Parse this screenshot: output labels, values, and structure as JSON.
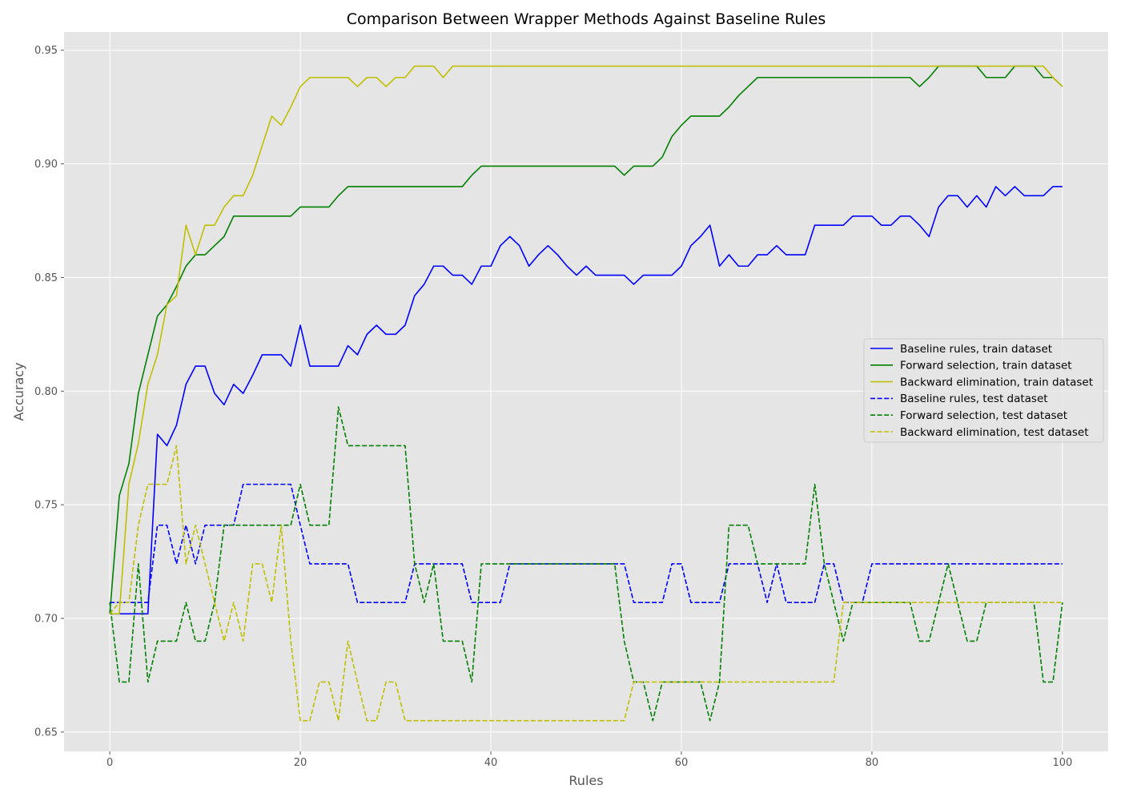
{
  "chart_data": {
    "type": "line",
    "title": "Comparison Between Wrapper Methods Against Baseline Rules",
    "xlabel": "Rules",
    "ylabel": "Accuracy",
    "xlim": [
      -4.8,
      104.8
    ],
    "ylim": [
      0.6415,
      0.958
    ],
    "xticks": [
      0,
      20,
      40,
      60,
      80,
      100
    ],
    "yticks": [
      0.65,
      0.7,
      0.75,
      0.8,
      0.85,
      0.9,
      0.95
    ],
    "grid": true,
    "legend_position": "center-right",
    "x": [
      0,
      1,
      2,
      3,
      4,
      5,
      6,
      7,
      8,
      9,
      10,
      11,
      12,
      13,
      14,
      15,
      16,
      17,
      18,
      19,
      20,
      21,
      22,
      23,
      24,
      25,
      26,
      27,
      28,
      29,
      30,
      31,
      32,
      33,
      34,
      35,
      36,
      37,
      38,
      39,
      40,
      41,
      42,
      43,
      44,
      45,
      46,
      47,
      48,
      49,
      50,
      51,
      52,
      53,
      54,
      55,
      56,
      57,
      58,
      59,
      60,
      61,
      62,
      63,
      64,
      65,
      66,
      67,
      68,
      69,
      70,
      71,
      72,
      73,
      74,
      75,
      76,
      77,
      78,
      79,
      80,
      81,
      82,
      83,
      84,
      85,
      86,
      87,
      88,
      89,
      90,
      91,
      92,
      93,
      94,
      95,
      96,
      97,
      98,
      99,
      100
    ],
    "series": [
      {
        "name": "Baseline rules, train dataset",
        "color": "#0000ff",
        "style": "solid",
        "values": [
          0.702,
          0.702,
          0.702,
          0.702,
          0.702,
          0.781,
          0.776,
          0.785,
          0.803,
          0.811,
          0.811,
          0.799,
          0.794,
          0.803,
          0.799,
          0.807,
          0.816,
          0.816,
          0.816,
          0.811,
          0.829,
          0.811,
          0.811,
          0.811,
          0.811,
          0.82,
          0.816,
          0.825,
          0.829,
          0.825,
          0.825,
          0.829,
          0.842,
          0.847,
          0.855,
          0.855,
          0.851,
          0.851,
          0.847,
          0.855,
          0.855,
          0.864,
          0.868,
          0.864,
          0.855,
          0.86,
          0.864,
          0.86,
          0.855,
          0.851,
          0.855,
          0.851,
          0.851,
          0.851,
          0.851,
          0.847,
          0.851,
          0.851,
          0.851,
          0.851,
          0.855,
          0.864,
          0.868,
          0.873,
          0.855,
          0.86,
          0.855,
          0.855,
          0.86,
          0.86,
          0.864,
          0.86,
          0.86,
          0.86,
          0.873,
          0.873,
          0.873,
          0.873,
          0.877,
          0.877,
          0.877,
          0.873,
          0.873,
          0.877,
          0.877,
          0.873,
          0.868,
          0.881,
          0.886,
          0.886,
          0.881,
          0.886,
          0.881,
          0.89,
          0.886,
          0.89,
          0.886,
          0.886,
          0.886,
          0.89,
          0.89
        ]
      },
      {
        "name": "Forward selection, train dataset",
        "color": "#008000",
        "style": "solid",
        "values": [
          0.702,
          0.754,
          0.768,
          0.799,
          0.816,
          0.833,
          0.838,
          0.846,
          0.855,
          0.86,
          0.86,
          0.864,
          0.868,
          0.877,
          0.877,
          0.877,
          0.877,
          0.877,
          0.877,
          0.877,
          0.881,
          0.881,
          0.881,
          0.881,
          0.886,
          0.89,
          0.89,
          0.89,
          0.89,
          0.89,
          0.89,
          0.89,
          0.89,
          0.89,
          0.89,
          0.89,
          0.89,
          0.89,
          0.895,
          0.899,
          0.899,
          0.899,
          0.899,
          0.899,
          0.899,
          0.899,
          0.899,
          0.899,
          0.899,
          0.899,
          0.899,
          0.899,
          0.899,
          0.899,
          0.895,
          0.899,
          0.899,
          0.899,
          0.903,
          0.912,
          0.917,
          0.921,
          0.921,
          0.921,
          0.921,
          0.925,
          0.93,
          0.934,
          0.938,
          0.938,
          0.938,
          0.938,
          0.938,
          0.938,
          0.938,
          0.938,
          0.938,
          0.938,
          0.938,
          0.938,
          0.938,
          0.938,
          0.938,
          0.938,
          0.938,
          0.934,
          0.938,
          0.943,
          0.943,
          0.943,
          0.943,
          0.943,
          0.938,
          0.938,
          0.938,
          0.943,
          0.943,
          0.943,
          0.938,
          0.938,
          0.934
        ]
      },
      {
        "name": "Backward elimination, train dataset",
        "color": "#bfbf00",
        "style": "solid",
        "values": [
          0.702,
          0.702,
          0.759,
          0.777,
          0.803,
          0.816,
          0.838,
          0.842,
          0.873,
          0.86,
          0.873,
          0.873,
          0.881,
          0.886,
          0.886,
          0.895,
          0.908,
          0.921,
          0.917,
          0.925,
          0.934,
          0.938,
          0.938,
          0.938,
          0.938,
          0.938,
          0.934,
          0.938,
          0.938,
          0.934,
          0.938,
          0.938,
          0.943,
          0.943,
          0.943,
          0.938,
          0.943,
          0.943,
          0.943,
          0.943,
          0.943,
          0.943,
          0.943,
          0.943,
          0.943,
          0.943,
          0.943,
          0.943,
          0.943,
          0.943,
          0.943,
          0.943,
          0.943,
          0.943,
          0.943,
          0.943,
          0.943,
          0.943,
          0.943,
          0.943,
          0.943,
          0.943,
          0.943,
          0.943,
          0.943,
          0.943,
          0.943,
          0.943,
          0.943,
          0.943,
          0.943,
          0.943,
          0.943,
          0.943,
          0.943,
          0.943,
          0.943,
          0.943,
          0.943,
          0.943,
          0.943,
          0.943,
          0.943,
          0.943,
          0.943,
          0.943,
          0.943,
          0.943,
          0.943,
          0.943,
          0.943,
          0.943,
          0.943,
          0.943,
          0.943,
          0.943,
          0.943,
          0.943,
          0.943,
          0.938,
          0.934
        ]
      },
      {
        "name": "Baseline rules, test dataset",
        "color": "#0000ff",
        "style": "dashed",
        "values": [
          0.707,
          0.707,
          0.707,
          0.707,
          0.707,
          0.741,
          0.741,
          0.724,
          0.741,
          0.724,
          0.741,
          0.741,
          0.741,
          0.741,
          0.759,
          0.759,
          0.759,
          0.759,
          0.759,
          0.759,
          0.741,
          0.724,
          0.724,
          0.724,
          0.724,
          0.724,
          0.707,
          0.707,
          0.707,
          0.707,
          0.707,
          0.707,
          0.724,
          0.724,
          0.724,
          0.724,
          0.724,
          0.724,
          0.707,
          0.707,
          0.707,
          0.707,
          0.724,
          0.724,
          0.724,
          0.724,
          0.724,
          0.724,
          0.724,
          0.724,
          0.724,
          0.724,
          0.724,
          0.724,
          0.724,
          0.707,
          0.707,
          0.707,
          0.707,
          0.724,
          0.724,
          0.707,
          0.707,
          0.707,
          0.707,
          0.724,
          0.724,
          0.724,
          0.724,
          0.707,
          0.724,
          0.707,
          0.707,
          0.707,
          0.707,
          0.724,
          0.724,
          0.707,
          0.707,
          0.707,
          0.724,
          0.724,
          0.724,
          0.724,
          0.724,
          0.724,
          0.724,
          0.724,
          0.724,
          0.724,
          0.724,
          0.724,
          0.724,
          0.724,
          0.724,
          0.724,
          0.724,
          0.724,
          0.724,
          0.724,
          0.724
        ]
      },
      {
        "name": "Forward selection, test dataset",
        "color": "#008000",
        "style": "dashed",
        "values": [
          0.707,
          0.672,
          0.672,
          0.724,
          0.672,
          0.69,
          0.69,
          0.69,
          0.707,
          0.69,
          0.69,
          0.707,
          0.741,
          0.741,
          0.741,
          0.741,
          0.741,
          0.741,
          0.741,
          0.741,
          0.759,
          0.741,
          0.741,
          0.741,
          0.793,
          0.776,
          0.776,
          0.776,
          0.776,
          0.776,
          0.776,
          0.776,
          0.724,
          0.707,
          0.724,
          0.69,
          0.69,
          0.69,
          0.672,
          0.724,
          0.724,
          0.724,
          0.724,
          0.724,
          0.724,
          0.724,
          0.724,
          0.724,
          0.724,
          0.724,
          0.724,
          0.724,
          0.724,
          0.724,
          0.69,
          0.672,
          0.672,
          0.655,
          0.672,
          0.672,
          0.672,
          0.672,
          0.672,
          0.655,
          0.672,
          0.741,
          0.741,
          0.741,
          0.724,
          0.724,
          0.724,
          0.724,
          0.724,
          0.724,
          0.759,
          0.724,
          0.707,
          0.69,
          0.707,
          0.707,
          0.707,
          0.707,
          0.707,
          0.707,
          0.707,
          0.69,
          0.69,
          0.707,
          0.724,
          0.707,
          0.69,
          0.69,
          0.707,
          0.707,
          0.707,
          0.707,
          0.707,
          0.707,
          0.672,
          0.672,
          0.707
        ]
      },
      {
        "name": "Backward elimination, test dataset",
        "color": "#bfbf00",
        "style": "dashed",
        "values": [
          0.702,
          0.707,
          0.707,
          0.741,
          0.759,
          0.759,
          0.759,
          0.776,
          0.724,
          0.741,
          0.724,
          0.707,
          0.69,
          0.707,
          0.69,
          0.724,
          0.724,
          0.707,
          0.741,
          0.69,
          0.655,
          0.655,
          0.672,
          0.672,
          0.655,
          0.69,
          0.672,
          0.655,
          0.655,
          0.672,
          0.672,
          0.655,
          0.655,
          0.655,
          0.655,
          0.655,
          0.655,
          0.655,
          0.655,
          0.655,
          0.655,
          0.655,
          0.655,
          0.655,
          0.655,
          0.655,
          0.655,
          0.655,
          0.655,
          0.655,
          0.655,
          0.655,
          0.655,
          0.655,
          0.655,
          0.672,
          0.672,
          0.672,
          0.672,
          0.672,
          0.672,
          0.672,
          0.672,
          0.672,
          0.672,
          0.672,
          0.672,
          0.672,
          0.672,
          0.672,
          0.672,
          0.672,
          0.672,
          0.672,
          0.672,
          0.672,
          0.672,
          0.707,
          0.707,
          0.707,
          0.707,
          0.707,
          0.707,
          0.707,
          0.707,
          0.707,
          0.707,
          0.707,
          0.707,
          0.707,
          0.707,
          0.707,
          0.707,
          0.707,
          0.707,
          0.707,
          0.707,
          0.707,
          0.707,
          0.707,
          0.707
        ]
      }
    ]
  }
}
